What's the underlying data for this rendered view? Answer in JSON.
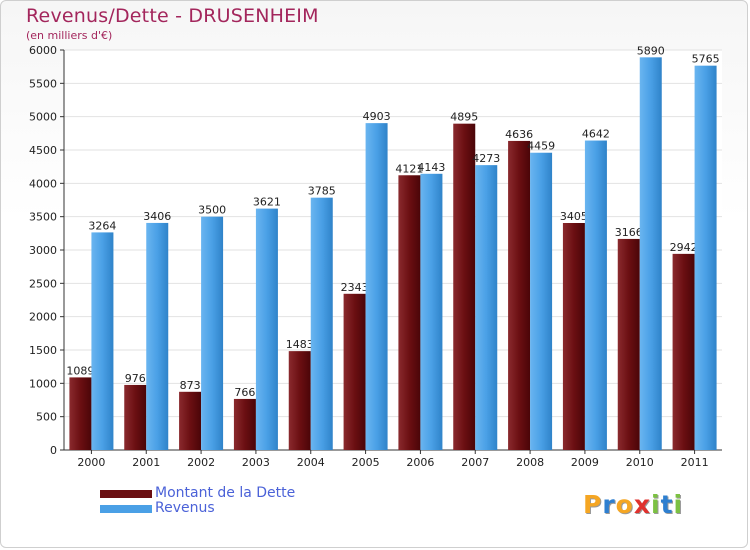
{
  "title": "Revenus/Dette - DRUSENHEIM",
  "subtitle": "(en milliers d'€)",
  "logo": {
    "text": "Proxiti",
    "letters": [
      "P",
      "r",
      "o",
      "x",
      "i",
      "t",
      "i"
    ],
    "colors": [
      "#f5a623",
      "#2e7fd0",
      "#f5a623",
      "#e0322e",
      "#7cc142",
      "#2e7fd0",
      "#7cc142"
    ]
  },
  "legend": [
    {
      "label": "Montant de la Dette",
      "color": "#6b0f12"
    },
    {
      "label": "Revenus",
      "color": "#4aa0e6"
    }
  ],
  "chart_data": {
    "type": "bar",
    "title": "Revenus/Dette - DRUSENHEIM",
    "subtitle": "(en milliers d'€)",
    "categories": [
      "2000",
      "2001",
      "2002",
      "2003",
      "2004",
      "2005",
      "2006",
      "2007",
      "2008",
      "2009",
      "2010",
      "2011"
    ],
    "series": [
      {
        "name": "Montant de la Dette",
        "color": "#6b0f12",
        "values": [
          1089,
          976,
          873,
          766,
          1483,
          2343,
          4121,
          4895,
          4636,
          3405,
          3166,
          2942
        ]
      },
      {
        "name": "Revenus",
        "color": "#4aa0e6",
        "values": [
          3264,
          3406,
          3500,
          3621,
          3785,
          4903,
          4143,
          4273,
          4459,
          4642,
          5890,
          5765
        ]
      }
    ],
    "ylim": [
      0,
      6000
    ],
    "yticks": [
      0,
      500,
      1000,
      1500,
      2000,
      2500,
      3000,
      3500,
      4000,
      4500,
      5000,
      5500,
      6000
    ],
    "grid": true,
    "legend_position": "bottom-left"
  }
}
